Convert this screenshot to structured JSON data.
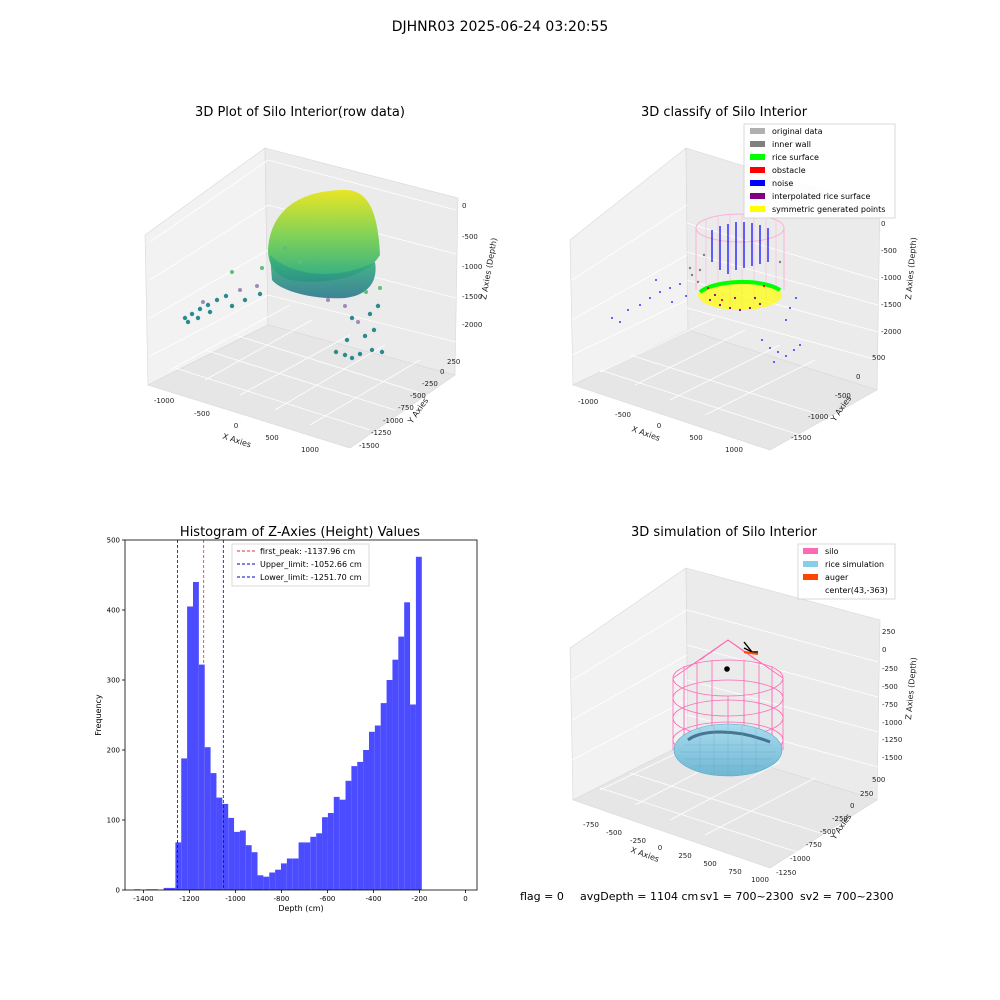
{
  "suptitle": "DJHNR03 2025-06-24 03:20:55",
  "footer": {
    "flag": "flag = 0",
    "avg_depth": "avgDepth = 1104 cm",
    "sv1": "sv1 = 700~2300",
    "sv2": "sv2 = 700~2300"
  },
  "colors": {
    "hist_bar": "#4b4bff",
    "peak_line": "#e03030",
    "limit_line": "#0000cc",
    "silo": "#ff69b4",
    "rice_simulation": "#87ceeb",
    "auger": "#ff4500",
    "original_data": "#b0b0b0",
    "inner_wall": "#808080",
    "rice_surface": "#00ff00",
    "obstacle": "#ff0000",
    "noise": "#0000ff",
    "interpolated_rice_surface": "#800080",
    "symmetric_generated_points": "#ffff00"
  },
  "chart_data": [
    {
      "type": "scatter",
      "subtype": "3d",
      "title": "3D Plot of Silo Interior(row data)",
      "xlabel": "X Axies",
      "ylabel": "Y Axies",
      "zlabel": "Z Axies (Depth)",
      "x_ticks": [
        "-1000",
        "-500",
        "0",
        "500",
        "1000"
      ],
      "y_ticks": [
        "250",
        "0",
        "-250",
        "-500",
        "-750",
        "-1000",
        "-1250",
        "-1500"
      ],
      "z_ticks": [
        "0",
        "-500",
        "-1000",
        "-1500",
        "-2000"
      ],
      "grid": true
    },
    {
      "type": "scatter",
      "subtype": "3d",
      "title": "3D classify of Silo Interior",
      "xlabel": "X Axies",
      "ylabel": "Y Axies",
      "zlabel": "Z Axies (Depth)",
      "x_ticks": [
        "-1000",
        "-500",
        "0",
        "500",
        "1000"
      ],
      "y_ticks": [
        "500",
        "0",
        "-500",
        "-1000",
        "-1500"
      ],
      "z_ticks": [
        "0",
        "-500",
        "-1000",
        "-1500",
        "-2000"
      ],
      "legend": [
        "original data",
        "inner wall",
        "rice surface",
        "obstacle",
        "noise",
        "interpolated rice surface",
        "symmetric generated points"
      ],
      "legend_position": "top-right",
      "grid": true
    },
    {
      "type": "bar",
      "subtype": "histogram",
      "title": "Histogram of Z-Axies (Height) Values",
      "xlabel": "Depth (cm)",
      "ylabel": "Frequency",
      "xlim": [
        -1480,
        50
      ],
      "ylim": [
        0,
        500
      ],
      "x_ticks": [
        -1400,
        -1200,
        -1000,
        -800,
        -600,
        -400,
        -200,
        0
      ],
      "y_ticks": [
        0,
        100,
        200,
        300,
        400,
        500
      ],
      "bin_width": 25.5,
      "bin_start": -1465,
      "values": [
        0,
        1,
        0,
        1,
        1,
        0,
        3,
        3,
        68,
        188,
        405,
        440,
        322,
        204,
        167,
        132,
        123,
        103,
        83,
        85,
        64,
        54,
        21,
        19,
        25,
        29,
        38,
        45,
        45,
        68,
        68,
        76,
        81,
        104,
        110,
        133,
        129,
        156,
        177,
        183,
        200,
        226,
        235,
        267,
        300,
        329,
        362,
        411,
        265,
        476
      ],
      "vlines": [
        {
          "value": -1137.96,
          "label": "first_peak: -1137.96 cm",
          "color": "red"
        },
        {
          "value": -1052.66,
          "label": "Upper_limit: -1052.66 cm",
          "color": "blue"
        },
        {
          "value": -1251.7,
          "label": "Lower_limit: -1251.70 cm",
          "color": "blue"
        }
      ],
      "legend_position": "top-left",
      "grid": false
    },
    {
      "type": "scatter",
      "subtype": "3d",
      "title": "3D simulation of Silo Interior",
      "xlabel": "X Axies",
      "ylabel": "Y Axies",
      "zlabel": "Z Axies (Depth)",
      "x_ticks": [
        "-750",
        "-500",
        "-250",
        "0",
        "250",
        "500",
        "750",
        "1000"
      ],
      "y_ticks": [
        "500",
        "250",
        "0",
        "-250",
        "-500",
        "-750",
        "-1000",
        "-1250"
      ],
      "z_ticks": [
        "250",
        "0",
        "-250",
        "-500",
        "-750",
        "-1000",
        "-1250",
        "-1500"
      ],
      "legend": [
        "silo",
        "rice simulation",
        "auger",
        "center(43,-363)"
      ],
      "legend_position": "top-right",
      "grid": true
    }
  ]
}
